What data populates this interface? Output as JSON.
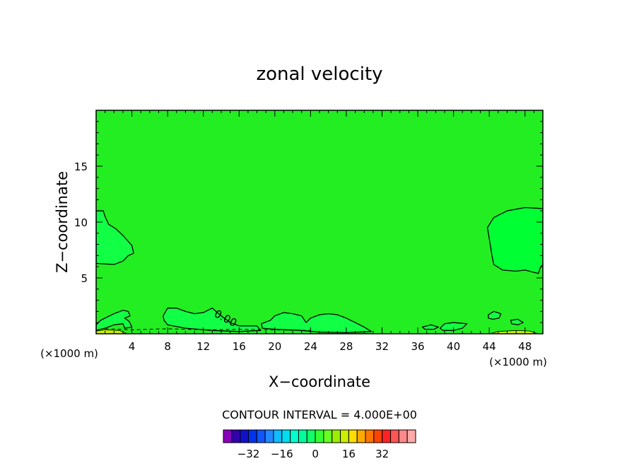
{
  "chart_data": {
    "type": "contour",
    "title": "zonal velocity",
    "xlabel": "X−coordinate",
    "ylabel": "Z−coordinate",
    "x_unit_label": "(×1000 m)",
    "x_unit_label_right": "(×1000 m)",
    "xlim": [
      0,
      50
    ],
    "ylim": [
      0,
      20
    ],
    "x_ticks": [
      4,
      8,
      12,
      16,
      20,
      24,
      28,
      32,
      36,
      40,
      44,
      48
    ],
    "y_ticks": [
      5,
      10,
      15
    ],
    "contour_label": "0.00",
    "contour_interval_label": "CONTOUR INTERVAL = 4.000E+00",
    "background_color": "#22ee22",
    "region_colors": {
      "pale": "#11ff44",
      "core": "#00ff33",
      "yellow": "#ccee00"
    },
    "contours": [
      {
        "name": "left-upper",
        "fill": "pale",
        "points": [
          [
            0,
            11
          ],
          [
            0.8,
            11
          ],
          [
            1,
            10.5
          ],
          [
            1.4,
            9.8
          ],
          [
            2.2,
            9.4
          ],
          [
            3,
            8.8
          ],
          [
            4,
            7.9
          ],
          [
            4.2,
            7.2
          ],
          [
            3.6,
            7.0
          ],
          [
            3,
            6.5
          ],
          [
            2,
            6.2
          ],
          [
            0,
            6.3
          ]
        ]
      },
      {
        "name": "right-upper",
        "fill": "core",
        "points": [
          [
            50,
            11.2
          ],
          [
            48,
            11.3
          ],
          [
            46,
            11
          ],
          [
            44.5,
            10.4
          ],
          [
            43.8,
            9.5
          ],
          [
            44,
            8.5
          ],
          [
            44.3,
            7
          ],
          [
            44.5,
            6.2
          ],
          [
            45.5,
            5.7
          ],
          [
            47,
            5.6
          ],
          [
            48,
            5.7
          ],
          [
            49.5,
            5.4
          ],
          [
            49.7,
            5.9
          ],
          [
            50,
            6.2
          ]
        ]
      },
      {
        "name": "bottom-left",
        "fill": "pale",
        "points": [
          [
            0,
            0.8
          ],
          [
            0.5,
            1.2
          ],
          [
            2,
            1.8
          ],
          [
            3,
            2.1
          ],
          [
            3.6,
            2.0
          ],
          [
            3.8,
            1.6
          ],
          [
            3.2,
            1.4
          ],
          [
            3.7,
            1.1
          ],
          [
            4,
            0.6
          ],
          [
            3.2,
            0.5
          ],
          [
            3,
            0.9
          ],
          [
            2,
            0.8
          ],
          [
            1,
            0.5
          ],
          [
            0,
            0.3
          ]
        ]
      },
      {
        "name": "bottom-1",
        "fill": "pale",
        "points": [
          [
            7.5,
            1.6
          ],
          [
            8,
            2.3
          ],
          [
            9,
            2.3
          ],
          [
            10,
            2.0
          ],
          [
            11,
            1.8
          ],
          [
            12,
            1.9
          ],
          [
            13,
            2.3
          ],
          [
            14,
            1.6
          ],
          [
            15,
            1.0
          ],
          [
            16,
            0.7
          ],
          [
            18,
            0.7
          ],
          [
            18.4,
            0.3
          ],
          [
            16,
            0.2
          ],
          [
            13,
            0.3
          ],
          [
            10,
            0.5
          ],
          [
            8,
            0.8
          ],
          [
            7.6,
            1.2
          ]
        ]
      },
      {
        "name": "bottom-2",
        "fill": "pale",
        "points": [
          [
            18.5,
            0.9
          ],
          [
            19.5,
            1.2
          ],
          [
            20,
            1.6
          ],
          [
            21,
            1.9
          ],
          [
            22,
            1.8
          ],
          [
            23,
            1.6
          ],
          [
            23.5,
            1.0
          ],
          [
            24,
            1.4
          ],
          [
            25,
            1.7
          ],
          [
            26,
            1.8
          ],
          [
            27,
            1.7
          ],
          [
            28,
            1.4
          ],
          [
            29,
            1.0
          ],
          [
            30,
            0.6
          ],
          [
            30.8,
            0.2
          ],
          [
            28,
            0.1
          ],
          [
            25,
            0.15
          ],
          [
            23,
            0.3
          ],
          [
            20,
            0.4
          ],
          [
            18.6,
            0.5
          ]
        ]
      },
      {
        "name": "bottom-3",
        "fill": "pale",
        "points": [
          [
            38.5,
            0.5
          ],
          [
            39,
            0.9
          ],
          [
            40,
            1.0
          ],
          [
            41.5,
            0.9
          ],
          [
            41,
            0.5
          ],
          [
            40,
            0.3
          ],
          [
            38.8,
            0.3
          ]
        ]
      },
      {
        "name": "blob-1",
        "fill": "pale",
        "points": [
          [
            43.9,
            1.7
          ],
          [
            44.5,
            2.0
          ],
          [
            45.3,
            1.8
          ],
          [
            45.1,
            1.4
          ],
          [
            44.4,
            1.3
          ],
          [
            43.9,
            1.4
          ]
        ]
      },
      {
        "name": "blob-2",
        "fill": "pale",
        "points": [
          [
            46.4,
            1.2
          ],
          [
            47.2,
            1.3
          ],
          [
            47.8,
            1.0
          ],
          [
            47.2,
            0.8
          ],
          [
            46.5,
            0.9
          ]
        ]
      },
      {
        "name": "blob-3",
        "fill": "pale",
        "points": [
          [
            36.5,
            0.6
          ],
          [
            37.5,
            0.8
          ],
          [
            38.3,
            0.6
          ],
          [
            37.8,
            0.4
          ],
          [
            36.8,
            0.4
          ]
        ]
      }
    ],
    "dashed_contours": [
      {
        "name": "near-ground",
        "points": [
          [
            1,
            0.45
          ],
          [
            4,
            0.35
          ],
          [
            8,
            0.45
          ],
          [
            12,
            0.35
          ],
          [
            16,
            0.4
          ],
          [
            20,
            0.35
          ],
          [
            24,
            0.3
          ]
        ]
      }
    ],
    "yellow_strips": [
      {
        "name": "left-strip",
        "points": [
          [
            0,
            0
          ],
          [
            0,
            0.25
          ],
          [
            1,
            0.35
          ],
          [
            2.6,
            0.3
          ],
          [
            3.5,
            0
          ],
          [
            0,
            0
          ]
        ]
      },
      {
        "name": "right-strip",
        "points": [
          [
            44,
            0
          ],
          [
            45,
            0.2
          ],
          [
            47,
            0.3
          ],
          [
            48.5,
            0.25
          ],
          [
            49.5,
            0
          ]
        ]
      }
    ],
    "colorbar": {
      "colors": [
        "#8800bb",
        "#3300aa",
        "#1111cc",
        "#0033ee",
        "#1155ff",
        "#2288ff",
        "#11bbff",
        "#00ddee",
        "#00ffcc",
        "#00ff99",
        "#11ff66",
        "#33ff33",
        "#66ff22",
        "#99ee00",
        "#ccee00",
        "#ffdd00",
        "#ffaa00",
        "#ff7700",
        "#ff4400",
        "#ff2222",
        "#ff5555",
        "#ff8888",
        "#ffaaaa"
      ],
      "tick_labels": [
        "−32",
        "−16",
        "0",
        "16",
        "32"
      ],
      "tick_values": [
        -32,
        -16,
        0,
        16,
        32
      ],
      "range": [
        -44,
        48
      ]
    }
  }
}
